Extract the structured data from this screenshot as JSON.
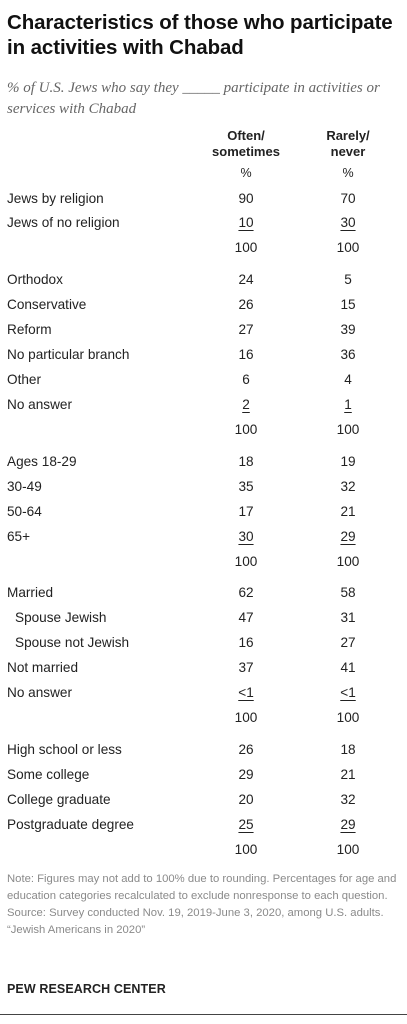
{
  "title": "Characteristics of those who participate in activities with Chabad",
  "subtitle": "% of U.S. Jews who say they _____ participate in activities or services with Chabad",
  "columns": {
    "col1_line1": "Often/",
    "col1_line2": "sometimes",
    "col2_line1": "Rarely/",
    "col2_line2": "never"
  },
  "rows": [
    {
      "label": "",
      "v1": "%",
      "v2": "%",
      "type": "pct",
      "top": 163
    },
    {
      "label": "Jews by religion",
      "v1": "90",
      "v2": "70"
    },
    {
      "label": "Jews of no religion",
      "v1": "10",
      "v2": "30",
      "u": true
    },
    {
      "label": "",
      "v1": "100",
      "v2": "100"
    },
    {
      "label": "Orthodox",
      "v1": "24",
      "v2": "5"
    },
    {
      "label": "Conservative",
      "v1": "26",
      "v2": "15"
    },
    {
      "label": "Reform",
      "v1": "27",
      "v2": "39"
    },
    {
      "label": "No particular branch",
      "v1": "16",
      "v2": "36"
    },
    {
      "label": "Other",
      "v1": "6",
      "v2": "4"
    },
    {
      "label": "No answer",
      "v1": "2",
      "v2": "1",
      "u": true
    },
    {
      "label": "",
      "v1": "100",
      "v2": "100"
    },
    {
      "label": "Ages 18-29",
      "v1": "18",
      "v2": "19"
    },
    {
      "label": "30-49",
      "v1": "35",
      "v2": "32"
    },
    {
      "label": "50-64",
      "v1": "17",
      "v2": "21"
    },
    {
      "label": "65+",
      "v1": "30",
      "v2": "29",
      "u": true
    },
    {
      "label": "",
      "v1": "100",
      "v2": "100"
    },
    {
      "label": "Married",
      "v1": "62",
      "v2": "58"
    },
    {
      "label": "Spouse Jewish",
      "v1": "47",
      "v2": "31",
      "indent": true
    },
    {
      "label": "Spouse not Jewish",
      "v1": "16",
      "v2": "27",
      "indent": true
    },
    {
      "label": "Not married",
      "v1": "37",
      "v2": "41"
    },
    {
      "label": "No answer",
      "v1": "<1",
      "v2": "<1",
      "u": true
    },
    {
      "label": "",
      "v1": "100",
      "v2": "100"
    },
    {
      "label": "High school or less",
      "v1": "26",
      "v2": "18"
    },
    {
      "label": "Some college",
      "v1": "29",
      "v2": "21"
    },
    {
      "label": "College graduate",
      "v1": "20",
      "v2": "32"
    },
    {
      "label": "Postgraduate degree",
      "v1": "25",
      "v2": "29",
      "u": true
    },
    {
      "label": "",
      "v1": "100",
      "v2": "100"
    }
  ],
  "notes": {
    "line1": "Note: Figures may not add to 100% due to rounding. Percentages for age and education categories recalculated to exclude nonresponse to each question.",
    "line2": "Source: Survey conducted Nov. 19, 2019-June 3, 2020, among U.S. adults.",
    "line3": "“Jewish Americans in 2020”"
  },
  "brand": "PEW RESEARCH CENTER"
}
